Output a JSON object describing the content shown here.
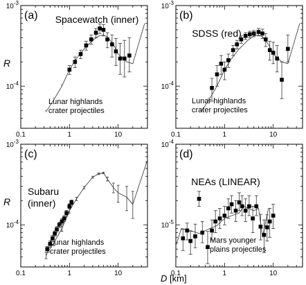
{
  "figure": {
    "y_label": "R",
    "x_label_var": "D",
    "x_label_unit": "[km]"
  },
  "chart_data": [
    {
      "type": "scatter",
      "panel": "(a)",
      "title": "Spacewatch (inner)",
      "annotation": [
        "Lunar highlands",
        "crater projectiles"
      ],
      "xscale": "log",
      "yscale": "log",
      "xlim": [
        0.1,
        40
      ],
      "ylim": [
        3e-05,
        0.001
      ],
      "x_ticks": [
        "0.1",
        "1",
        "10"
      ],
      "y_ticks": [
        "10^-4",
        "10^-3"
      ],
      "series": [
        {
          "marker": "square",
          "x": [
            1.0,
            1.3,
            1.7,
            2.2,
            2.8,
            3.5,
            4.2,
            5.0,
            6.0,
            7.5,
            9.0,
            11.0,
            13.5,
            17.0
          ],
          "y": [
            0.00016,
            0.0002,
            0.00025,
            0.00032,
            0.00038,
            0.00046,
            0.00052,
            0.0005,
            0.00038,
            0.00033,
            0.00027,
            0.00022,
            0.00022,
            0.00024
          ],
          "err_hi": [
            2e-05,
            3e-05,
            3e-05,
            4e-05,
            5e-05,
            6e-05,
            7e-05,
            8e-05,
            8e-05,
            0.0001,
            0.00012,
            0.00012,
            0.00015,
            0.00016
          ],
          "err_lo": [
            2e-05,
            3e-05,
            3e-05,
            4e-05,
            5e-05,
            6e-05,
            7e-05,
            8e-05,
            8e-05,
            0.0001,
            9e-05,
            8e-05,
            9e-05,
            9e-05
          ]
        },
        {
          "marker": "star",
          "x": [
            0.33,
            0.48,
            0.7
          ],
          "y": [
            4.8e-05,
            6.8e-05,
            0.0001
          ]
        }
      ],
      "curve": {
        "x": [
          0.33,
          0.48,
          0.7,
          1.0,
          1.4,
          2.0,
          3.0,
          4.0,
          5.0,
          6.0,
          8.0,
          10.0,
          15.0,
          20.0,
          35.0
        ],
        "y": [
          4.8e-05,
          6.8e-05,
          0.0001,
          0.00016,
          0.00022,
          0.00029,
          0.00037,
          0.00042,
          0.00043,
          0.00041,
          0.00033,
          0.00025,
          0.0002,
          0.00019,
          0.0006
        ]
      }
    },
    {
      "type": "scatter",
      "panel": "(b)",
      "title": "SDSS (red)",
      "annotation": [
        "Lunar highlands",
        "crater projectiles"
      ],
      "xscale": "log",
      "yscale": "log",
      "xlim": [
        0.1,
        40
      ],
      "ylim": [
        3e-05,
        0.001
      ],
      "x_ticks": [
        "0.1",
        "1",
        "10"
      ],
      "y_ticks": [
        "10^-4",
        "10^-3"
      ],
      "series": [
        {
          "marker": "square",
          "x": [
            0.55,
            0.7,
            0.85,
            1.0,
            1.2,
            1.5,
            1.8,
            2.2,
            2.7,
            3.3,
            4.0,
            5.0,
            6.0,
            7.0,
            8.5,
            10.0,
            12.0,
            15.0,
            20.0
          ],
          "y": [
            9.5e-05,
            0.00014,
            0.00019,
            0.00016,
            0.00021,
            0.00028,
            0.00033,
            0.00038,
            0.00042,
            0.00044,
            0.00045,
            0.00047,
            0.00045,
            0.00038,
            0.00028,
            0.00026,
            0.00022,
            0.00012,
            0.00029
          ],
          "err_hi": [
            3e-05,
            4e-05,
            5e-05,
            4e-05,
            4e-05,
            4e-05,
            4e-05,
            4e-05,
            4e-05,
            4e-05,
            4e-05,
            5e-05,
            6e-05,
            7e-05,
            8e-05,
            9e-05,
            0.0001,
            8e-05,
            0.00014
          ],
          "err_lo": [
            3e-05,
            4e-05,
            5e-05,
            4e-05,
            4e-05,
            4e-05,
            4e-05,
            4e-05,
            4e-05,
            4e-05,
            4e-05,
            5e-05,
            6e-05,
            7e-05,
            7e-05,
            7e-05,
            7e-05,
            5e-05,
            9e-05
          ]
        },
        {
          "marker": "star",
          "x": [
            0.33,
            0.48
          ],
          "y": [
            4.8e-05,
            6.8e-05
          ]
        }
      ],
      "curve": {
        "x": [
          0.33,
          0.48,
          0.7,
          1.0,
          1.4,
          2.0,
          3.0,
          4.0,
          5.0,
          6.0,
          8.0,
          10.0,
          15.0,
          20.0,
          35.0
        ],
        "y": [
          4.8e-05,
          6.8e-05,
          0.0001,
          0.00016,
          0.00022,
          0.00029,
          0.00037,
          0.00042,
          0.00043,
          0.00041,
          0.00033,
          0.00025,
          0.0002,
          0.00019,
          0.0006
        ]
      }
    },
    {
      "type": "scatter",
      "panel": "(c)",
      "title": [
        "Subaru",
        "(inner)"
      ],
      "annotation": [
        "Lunar highlands",
        "crater projectiles"
      ],
      "xscale": "log",
      "yscale": "log",
      "xlim": [
        0.1,
        40
      ],
      "ylim": [
        3e-05,
        0.001
      ],
      "x_ticks": [
        "0.1",
        "1",
        "10"
      ],
      "y_ticks": [
        "10^-4",
        "10^-3"
      ],
      "series": [
        {
          "marker": "square",
          "x": [
            0.35,
            0.4,
            0.45,
            0.5,
            0.55,
            0.62,
            0.7,
            0.78,
            0.87,
            1.0,
            1.1
          ],
          "y": [
            5e-05,
            5.8e-05,
            6.8e-05,
            7.8e-05,
            8.8e-05,
            0.0001,
            0.00011,
            0.00012,
            0.00014,
            0.00017,
            0.00019
          ],
          "err_hi": [
            4e-06,
            5e-06,
            6e-06,
            6e-06,
            7e-06,
            8e-06,
            9e-06,
            1e-05,
            1.1e-05,
            1.2e-05,
            1.3e-05
          ],
          "err_lo": [
            4e-06,
            5e-06,
            6e-06,
            6e-06,
            7e-06,
            8e-06,
            9e-06,
            1e-05,
            1.1e-05,
            1.2e-05,
            1.3e-05
          ]
        },
        {
          "marker": "star",
          "x": [
            0.38,
            0.5,
            0.65
          ],
          "y": [
            4.5e-05,
            6.4e-05,
            9.3e-05
          ]
        }
      ],
      "curve": {
        "x": [
          0.33,
          0.48,
          0.7,
          1.0,
          1.4,
          2.0,
          3.0,
          4.0,
          5.0,
          6.0,
          8.0,
          10.0,
          15.0,
          20.0,
          40.0
        ],
        "y": [
          4.2e-05,
          6e-05,
          9e-05,
          0.00015,
          0.00021,
          0.00029,
          0.00039,
          0.00043,
          0.00044,
          0.00037,
          0.00029,
          0.00025,
          0.00022,
          0.00018,
          0.00064
        ],
        "err_hi": [
          4e-06,
          5e-06,
          7e-06,
          1e-05,
          1e-05,
          1e-05,
          1e-05,
          1e-05,
          1e-05,
          2e-05,
          4e-05,
          6e-05,
          8e-05,
          8e-05,
          0
        ],
        "err_lo": [
          4e-06,
          5e-06,
          7e-06,
          1e-05,
          1e-05,
          1e-05,
          1e-05,
          1e-05,
          1e-05,
          2e-05,
          4e-05,
          6e-05,
          7e-05,
          6e-05,
          0
        ]
      }
    },
    {
      "type": "scatter",
      "panel": "(d)",
      "title": "NEAs (LINEAR)",
      "annotation": [
        "Mars  younger",
        "plains projectiles"
      ],
      "xscale": "log",
      "yscale": "log",
      "xlim": [
        0.1,
        40
      ],
      "ylim": [
        3e-06,
        0.0001
      ],
      "x_ticks": [
        "0.1",
        "1",
        "10"
      ],
      "y_ticks": [
        "10^-5",
        "10^-4"
      ],
      "series": [
        {
          "marker": "square",
          "x": [
            0.14,
            0.17,
            0.2,
            0.25,
            0.3,
            0.35,
            0.45,
            0.55,
            0.65,
            0.8,
            1.0,
            1.2,
            1.4,
            1.7,
            2.0,
            2.3,
            2.7,
            3.2,
            3.8,
            4.5,
            5.5,
            6.5,
            7.5,
            8.5,
            10.0
          ],
          "y": [
            6.8e-06,
            8.5e-06,
            6.3e-06,
            7.2e-06,
            2.1e-05,
            8e-06,
            5.3e-06,
            8.5e-06,
            1.1e-05,
            1.2e-05,
            1.3e-05,
            1.6e-05,
            1.8e-05,
            1.5e-05,
            1.9e-05,
            1.7e-05,
            1.5e-05,
            1.7e-05,
            1.2e-05,
            1.7e-05,
            9.5e-06,
            7.5e-06,
            9.3e-06,
            1.1e-05,
            1.3e-05
          ],
          "err_hi": [
            2e-06,
            2e-06,
            2e-06,
            3e-06,
            5e-06,
            3e-06,
            3e-06,
            3e-06,
            4e-06,
            4e-06,
            4e-06,
            5e-06,
            5e-06,
            5e-06,
            6e-06,
            6e-06,
            6e-06,
            6e-06,
            5e-06,
            6e-06,
            4e-06,
            4e-06,
            4e-06,
            5e-06,
            5e-06
          ],
          "err_lo": [
            2e-06,
            2e-06,
            2e-06,
            2e-06,
            4e-06,
            2e-06,
            2e-06,
            2e-06,
            3e-06,
            3e-06,
            3e-06,
            4e-06,
            4e-06,
            4e-06,
            4e-06,
            4e-06,
            4e-06,
            4e-06,
            4e-06,
            4e-06,
            3e-06,
            3e-06,
            3e-06,
            4e-06,
            4e-06
          ]
        }
      ],
      "curve": {
        "x": [
          0.1,
          0.13,
          0.2,
          0.3,
          0.5,
          0.7,
          1.0,
          1.4,
          2.0,
          2.5,
          3.0,
          4.0,
          5.0,
          6.0,
          8.0
        ],
        "y": [
          5.5e-06,
          9e-06,
          8.5e-06,
          7.8e-06,
          9e-06,
          9.8e-06,
          1.2e-05,
          1.3e-05,
          1.4e-05,
          1.7e-05,
          1.6e-05,
          1.5e-05,
          1.6e-05,
          7e-06,
          1.6e-05
        ]
      }
    }
  ]
}
